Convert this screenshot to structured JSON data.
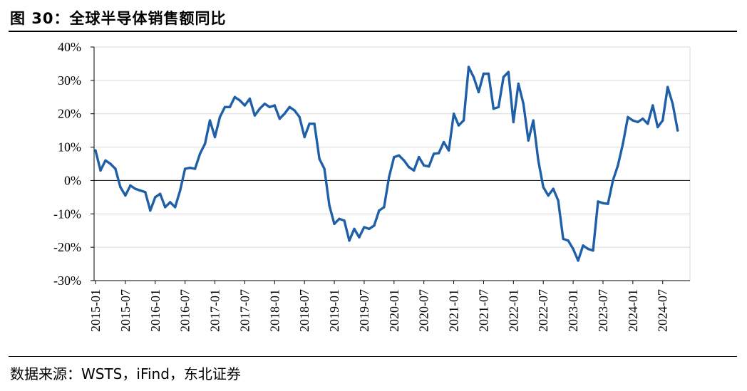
{
  "figure": {
    "title": "图 30：全球半导体销售额同比",
    "source": "数据来源：WSTS，iFind，东北证券"
  },
  "colors": {
    "line": "#1f5fa8",
    "grid": "#d9d9d9",
    "axis": "#000000"
  },
  "chart_data": {
    "type": "line",
    "title": "",
    "xlabel": "",
    "ylabel": "",
    "ylim": [
      -30,
      40
    ],
    "yticks": [
      -30,
      -20,
      -10,
      0,
      10,
      20,
      30,
      40
    ],
    "ytick_labels": [
      "-30%",
      "-20%",
      "-10%",
      "0%",
      "10%",
      "20%",
      "30%",
      "40%"
    ],
    "xtick_labels": [
      "2015-01",
      "2015-07",
      "2016-01",
      "2016-07",
      "2017-01",
      "2017-07",
      "2018-01",
      "2018-07",
      "2019-01",
      "2019-07",
      "2020-01",
      "2020-07",
      "2021-01",
      "2021-07",
      "2022-01",
      "2022-07",
      "2023-01",
      "2023-07",
      "2024-01",
      "2024-07"
    ],
    "grid": true,
    "legend": "none",
    "x_start": "2015-01",
    "series": [
      {
        "values": [
          9,
          3,
          6,
          5,
          3.5,
          -2,
          -4.5,
          -1.5,
          -2.5,
          -3,
          -3.5,
          -9,
          -5,
          -4,
          -8,
          -6.5,
          -8,
          -3,
          3.5,
          3.8,
          3.5,
          8,
          11,
          18,
          13,
          19,
          22,
          22,
          25,
          24,
          22.5,
          24.5,
          19.5,
          21.5,
          23,
          22,
          22.5,
          18.5,
          20,
          22,
          21,
          19,
          13,
          17,
          17,
          6.5,
          3.5,
          -7.5,
          -13,
          -11.5,
          -12,
          -18,
          -14.5,
          -17,
          -14,
          -14.5,
          -13.5,
          -9,
          -8,
          1,
          7,
          7.5,
          6,
          4,
          3,
          7,
          4.5,
          4.2,
          8,
          8.2,
          11.5,
          9,
          20,
          16.5,
          18,
          34,
          31,
          26.5,
          32,
          32,
          21.5,
          22,
          31,
          32.5,
          17.5,
          29,
          23,
          12,
          18,
          6,
          -2,
          -4.5,
          -2.5,
          -6,
          -17.5,
          -18,
          -20.5,
          -24,
          -19.5,
          -20.5,
          -21,
          -6.3,
          -6.8,
          -7,
          0,
          4.5,
          11,
          19,
          18,
          17.5,
          18.5,
          17,
          22.5,
          16,
          18,
          28,
          23,
          15
        ]
      }
    ]
  }
}
